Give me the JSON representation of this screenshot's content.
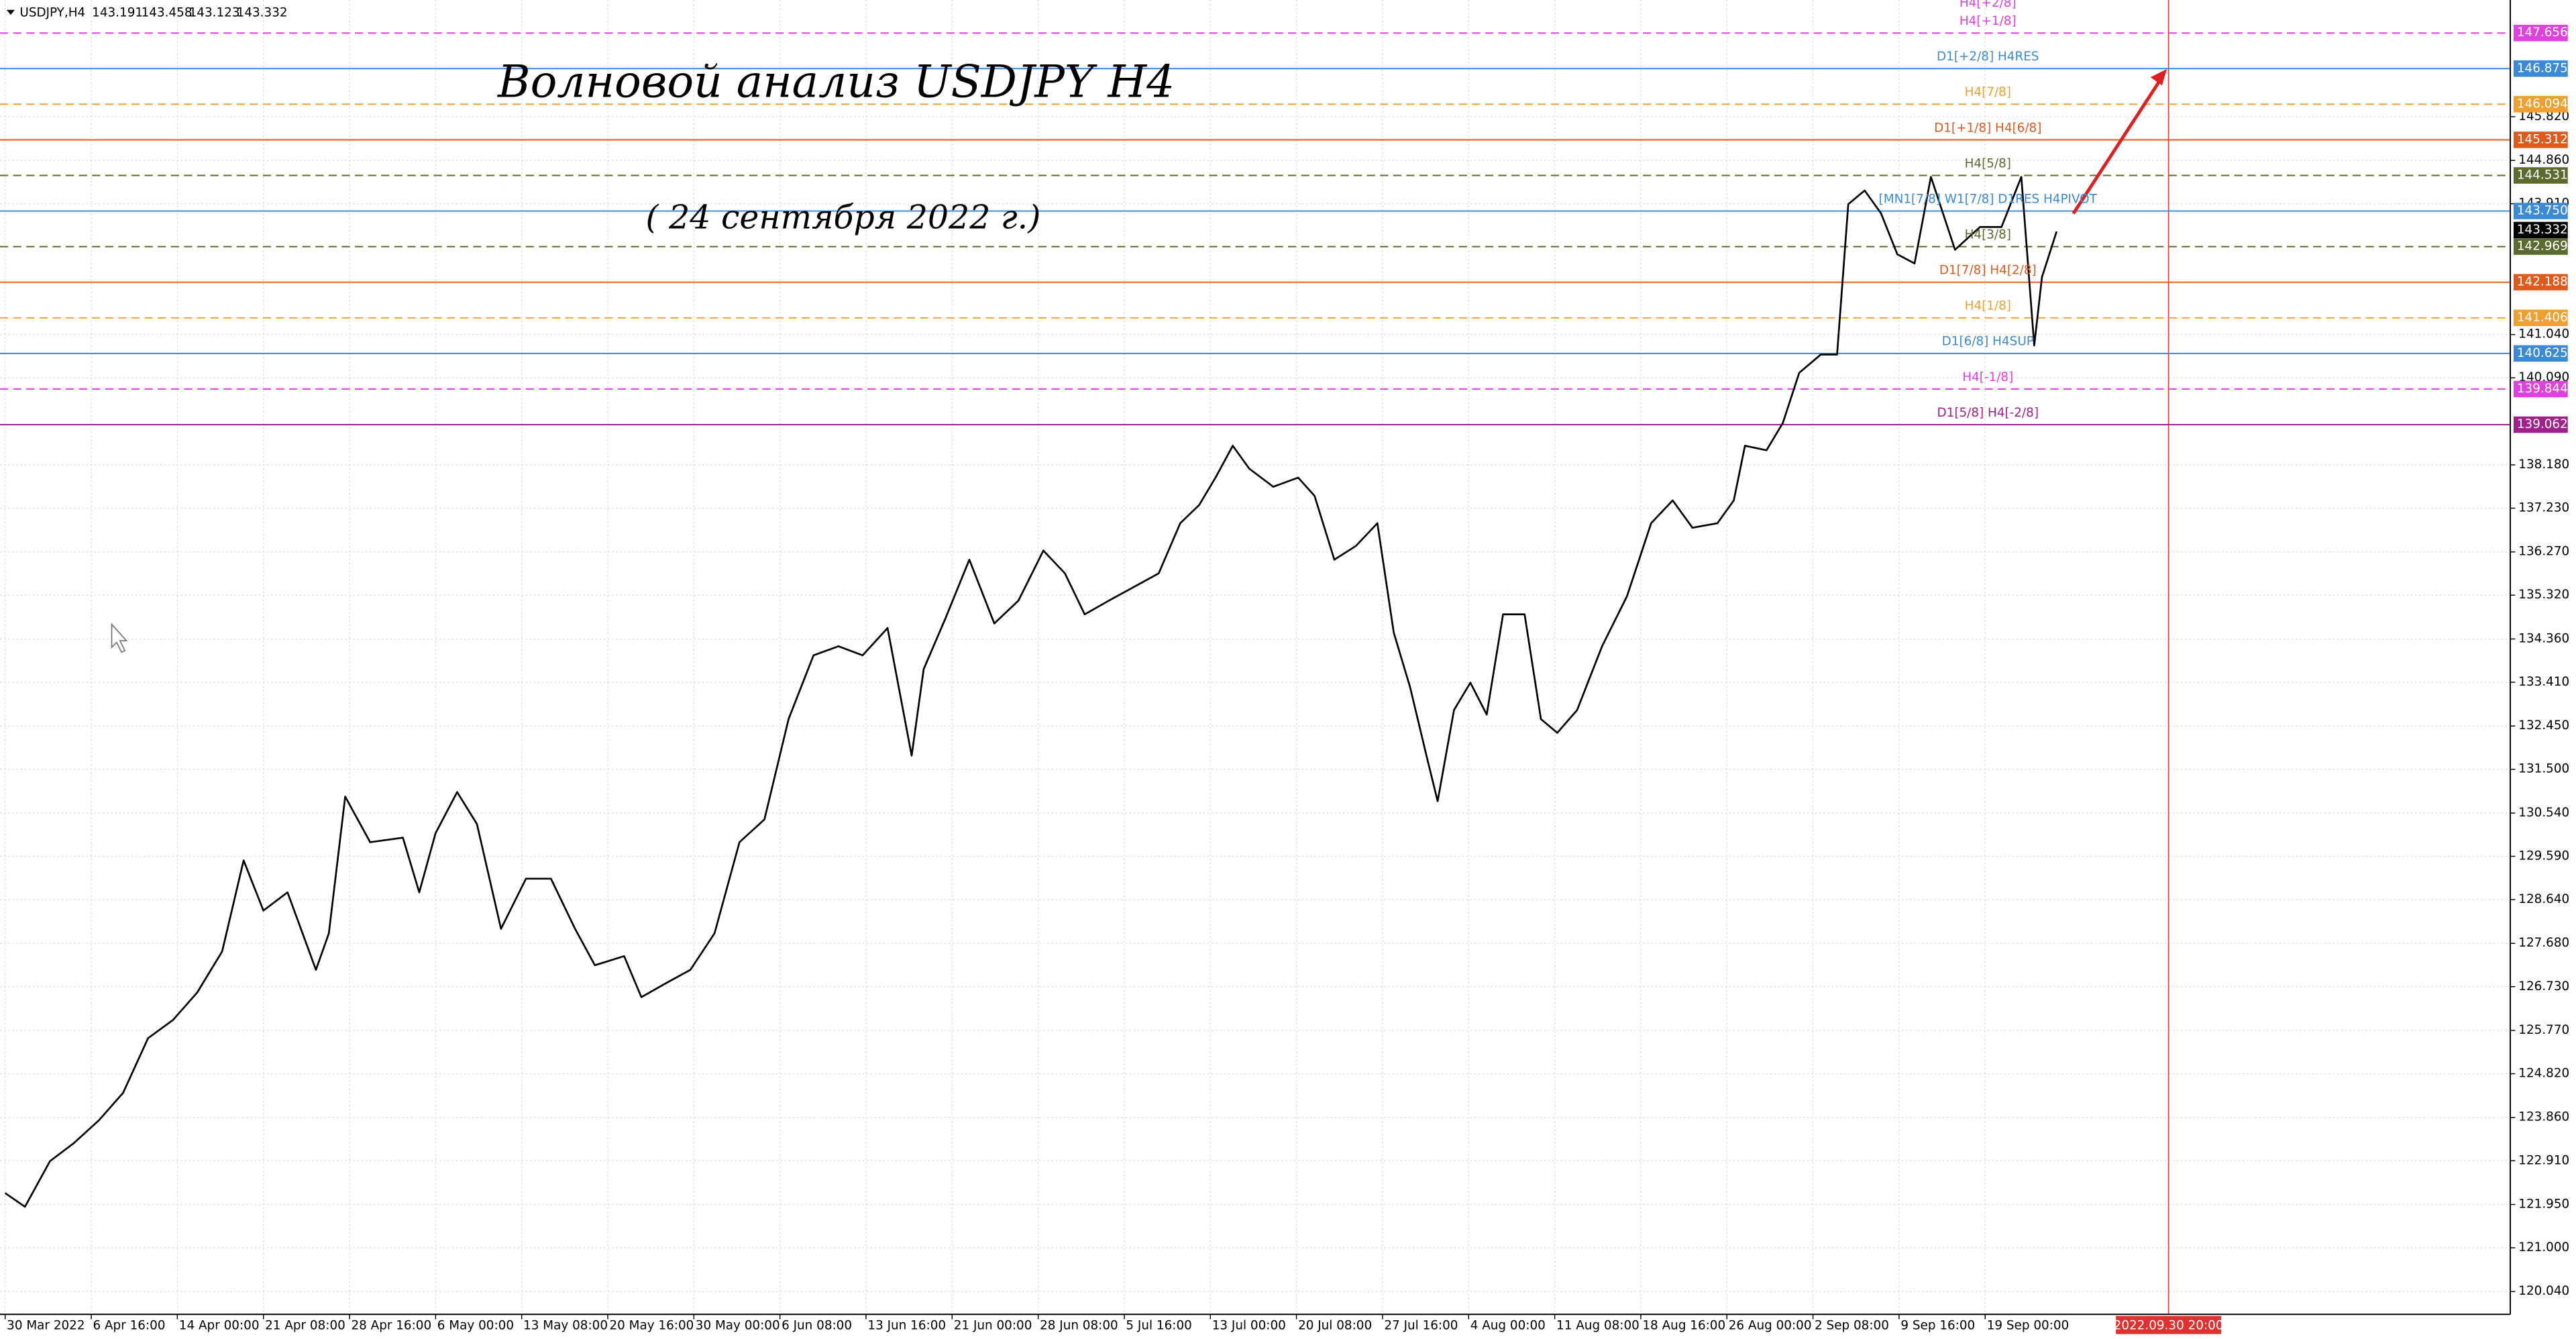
{
  "chart_data": {
    "type": "line",
    "symbol": "USDJPY,H4",
    "ohlc": [
      143.191,
      143.458,
      143.123,
      143.332
    ],
    "title": "Волновой анализ USDJPY H4",
    "subtitle": "( 24 сентября 2022 г.)",
    "current_price": 143.332,
    "xlim": [
      -0.06,
      29.1
    ],
    "ylim": [
      119.54,
      148.38
    ],
    "grid": true,
    "xticks": [
      {
        "value": 0,
        "label": "30 Mar 2022"
      },
      {
        "value": 1,
        "label": "6 Apr 16:00"
      },
      {
        "value": 2,
        "label": "14 Apr 00:00"
      },
      {
        "value": 3,
        "label": "21 Apr 08:00"
      },
      {
        "value": 4,
        "label": "28 Apr 16:00"
      },
      {
        "value": 5,
        "label": "6 May 00:00"
      },
      {
        "value": 6,
        "label": "13 May 08:00"
      },
      {
        "value": 7,
        "label": "20 May 16:00"
      },
      {
        "value": 8,
        "label": "30 May 00:00"
      },
      {
        "value": 9,
        "label": "6 Jun 08:00"
      },
      {
        "value": 10,
        "label": "13 Jun 16:00"
      },
      {
        "value": 11,
        "label": "21 Jun 00:00"
      },
      {
        "value": 12,
        "label": "28 Jun 08:00"
      },
      {
        "value": 13,
        "label": "5 Jul 16:00"
      },
      {
        "value": 14,
        "label": "13 Jul 00:00"
      },
      {
        "value": 15,
        "label": "20 Jul 08:00"
      },
      {
        "value": 16,
        "label": "27 Jul 16:00"
      },
      {
        "value": 17,
        "label": "4 Aug 00:00"
      },
      {
        "value": 18,
        "label": "11 Aug 08:00"
      },
      {
        "value": 19,
        "label": "18 Aug 16:00"
      },
      {
        "value": 20,
        "label": "26 Aug 00:00"
      },
      {
        "value": 21,
        "label": "2 Sep 08:00"
      },
      {
        "value": 22,
        "label": "9 Sep 16:00"
      },
      {
        "value": 23,
        "label": "19 Sep 00:00"
      }
    ],
    "marker": {
      "value": 25.13,
      "label": "2022.09.30 20:00"
    },
    "yticks": [
      {
        "value": 120.04,
        "label": "120.040"
      },
      {
        "value": 121.0,
        "label": "121.000"
      },
      {
        "value": 121.95,
        "label": "121.950"
      },
      {
        "value": 122.91,
        "label": "122.910"
      },
      {
        "value": 123.86,
        "label": "123.860"
      },
      {
        "value": 124.82,
        "label": "124.820"
      },
      {
        "value": 125.77,
        "label": "125.770"
      },
      {
        "value": 126.73,
        "label": "126.730"
      },
      {
        "value": 127.68,
        "label": "127.680"
      },
      {
        "value": 128.64,
        "label": "128.640"
      },
      {
        "value": 129.59,
        "label": "129.590"
      },
      {
        "value": 130.54,
        "label": "130.540"
      },
      {
        "value": 131.5,
        "label": "131.500"
      },
      {
        "value": 132.45,
        "label": "132.450"
      },
      {
        "value": 133.41,
        "label": "133.410"
      },
      {
        "value": 134.36,
        "label": "134.360"
      },
      {
        "value": 135.32,
        "label": "135.320"
      },
      {
        "value": 136.27,
        "label": "136.270"
      },
      {
        "value": 137.23,
        "label": "137.230"
      },
      {
        "value": 138.18,
        "label": "138.180"
      },
      {
        "value": 140.09,
        "label": "140.090"
      },
      {
        "value": 141.04,
        "label": "141.040"
      },
      {
        "value": 143.91,
        "label": "143.910"
      },
      {
        "value": 144.86,
        "label": "144.860"
      },
      {
        "value": 145.82,
        "label": "145.820"
      }
    ],
    "series": [
      {
        "name": "USDJPY",
        "color": "#000000",
        "x": [
          0,
          0.23,
          0.52,
          0.8,
          1.09,
          1.37,
          1.66,
          1.95,
          2.23,
          2.52,
          2.77,
          3.0,
          3.28,
          3.61,
          3.76,
          3.95,
          4.24,
          4.62,
          4.81,
          5.0,
          5.25,
          5.48,
          5.76,
          6.05,
          6.34,
          6.62,
          6.85,
          7.19,
          7.39,
          7.67,
          7.96,
          8.24,
          8.53,
          8.82,
          9.1,
          9.39,
          9.68,
          9.96,
          10.25,
          10.53,
          10.67,
          10.92,
          11.2,
          11.49,
          11.77,
          12.06,
          12.31,
          12.54,
          12.82,
          13.11,
          13.4,
          13.65,
          13.87,
          14.06,
          14.26,
          14.45,
          14.73,
          15.02,
          15.21,
          15.44,
          15.69,
          15.94,
          16.13,
          16.32,
          16.51,
          16.64,
          16.83,
          17.02,
          17.21,
          17.4,
          17.65,
          17.84,
          18.03,
          18.26,
          18.55,
          18.84,
          19.12,
          19.37,
          19.6,
          19.89,
          20.08,
          20.21,
          20.46,
          20.65,
          20.84,
          21.09,
          21.28,
          21.41,
          21.6,
          21.79,
          21.98,
          22.18,
          22.37,
          22.65,
          22.94,
          23.19,
          23.42,
          23.57,
          23.66,
          23.83
        ],
        "values": [
          122.2,
          121.9,
          122.9,
          123.3,
          123.8,
          124.4,
          125.6,
          126.0,
          126.6,
          127.5,
          129.5,
          128.4,
          128.8,
          127.1,
          127.9,
          130.9,
          129.9,
          130.0,
          128.8,
          130.1,
          131.0,
          130.3,
          128.0,
          129.1,
          129.1,
          128.0,
          127.2,
          127.4,
          126.5,
          126.8,
          127.1,
          127.9,
          129.9,
          130.4,
          132.6,
          134.0,
          134.2,
          134.0,
          134.6,
          131.8,
          133.7,
          134.8,
          136.1,
          134.7,
          135.2,
          136.3,
          135.8,
          134.9,
          135.2,
          135.5,
          135.8,
          136.9,
          137.3,
          137.9,
          138.6,
          138.1,
          137.7,
          137.9,
          137.5,
          136.1,
          136.4,
          136.9,
          134.5,
          133.3,
          131.8,
          130.8,
          132.8,
          133.4,
          132.7,
          134.9,
          134.9,
          132.6,
          132.3,
          132.8,
          134.2,
          135.3,
          136.9,
          137.4,
          136.8,
          136.9,
          137.4,
          138.6,
          138.5,
          139.1,
          140.2,
          140.6,
          140.6,
          143.9,
          144.2,
          143.7,
          142.8,
          142.6,
          144.5,
          142.9,
          143.4,
          143.4,
          144.5,
          140.8,
          142.3,
          143.3
        ]
      }
    ],
    "levels": [
      {
        "label": "H4[+1/8]",
        "price": 147.656,
        "color": "#e040e0",
        "dashed": true
      },
      {
        "label": "D1[+2/8] H4RES",
        "price": 146.875,
        "color": "#3a8ad8",
        "dashed": false
      },
      {
        "label": "H4[7/8]",
        "price": 146.094,
        "color": "#f0a030",
        "dashed": true
      },
      {
        "label": "D1[+1/8] H4[6/8]",
        "price": 145.312,
        "color": "#e05a1e",
        "dashed": false
      },
      {
        "label": "H4[5/8]",
        "price": 144.531,
        "color": "#5b6b2f",
        "dashed": true
      },
      {
        "label": "[MN1[7/8] W1[7/8] D1RES H4PIVOT",
        "price": {
          "value": 143.75,
          "label": "143.750"
        },
        "color": "#3a8ad8",
        "dashed": false
      },
      {
        "label": "H4[3/8]",
        "price": 142.969,
        "color": "#5b6b2f",
        "dashed": true
      },
      {
        "label": "D1[7/8] H4[2/8]",
        "price": 142.188,
        "color": "#e05a1e",
        "dashed": false
      },
      {
        "label": "H4[1/8]",
        "price": 141.406,
        "color": "#f0a030",
        "dashed": true
      },
      {
        "label": "D1[6/8] H4SUP",
        "price": 140.625,
        "color": "#3a8ad8",
        "dashed": false
      },
      {
        "label": "H4[-1/8]",
        "price": 139.844,
        "color": "#e040e0",
        "dashed": true
      },
      {
        "label": "D1[5/8] H4[-2/8]",
        "price": 139.062,
        "color": "#a0208c",
        "dashed": false
      }
    ],
    "top_label": "H4[+2/8]"
  }
}
